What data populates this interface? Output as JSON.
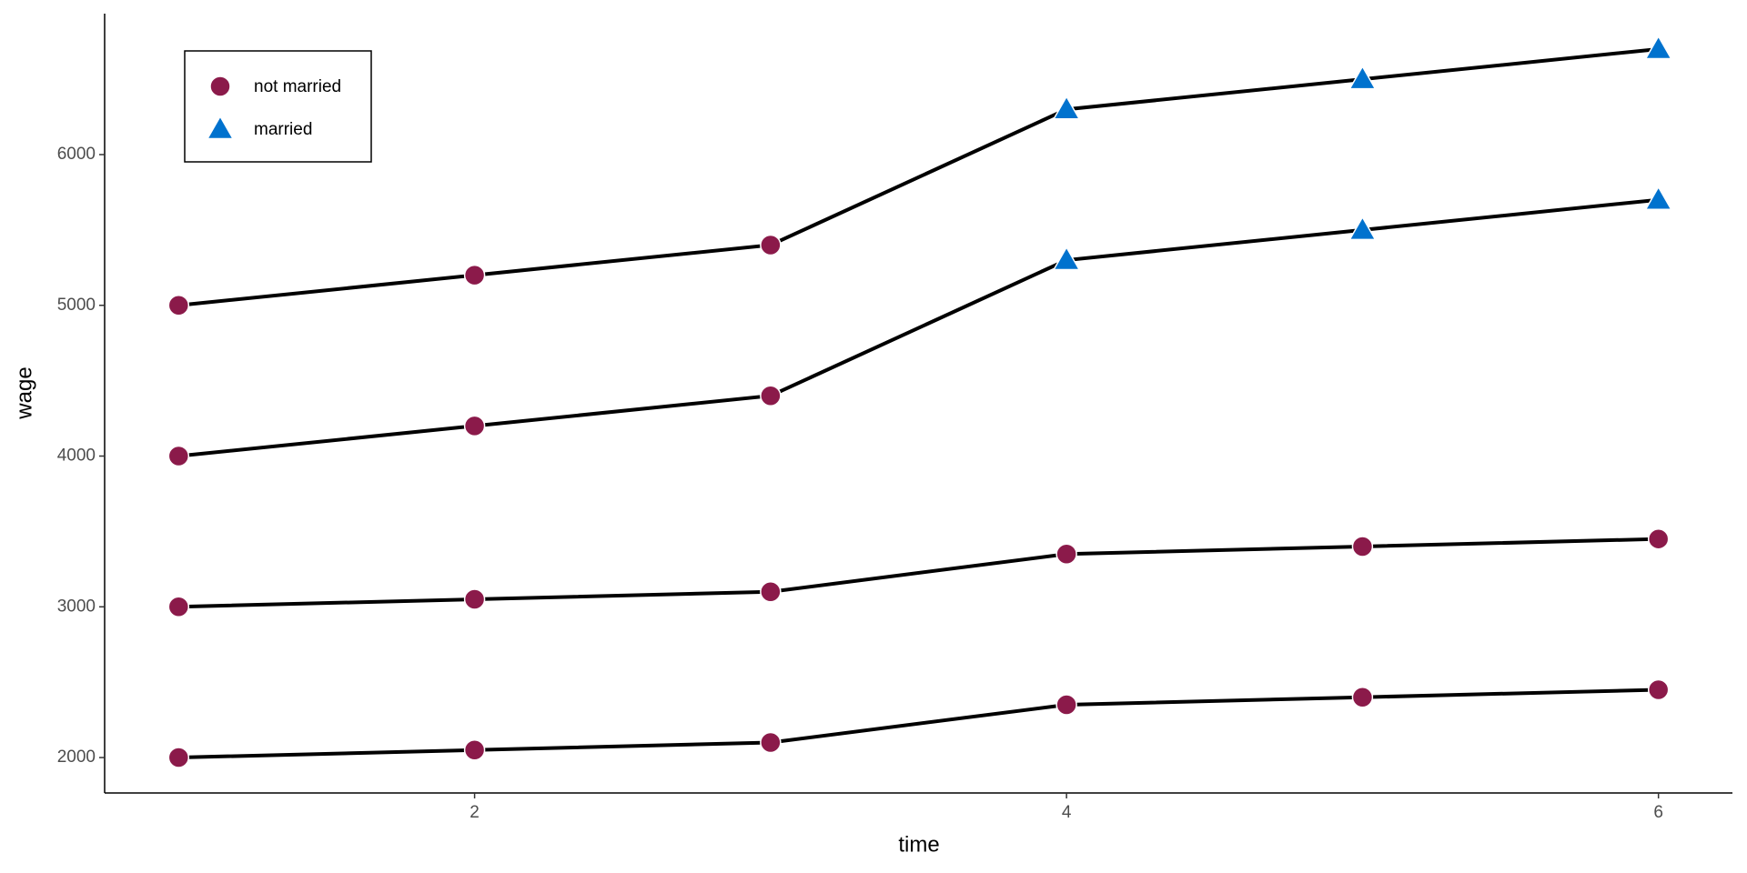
{
  "chart_data": {
    "type": "line",
    "x_label": "time",
    "y_label": "wage",
    "x": [
      1,
      2,
      3,
      4,
      5,
      6
    ],
    "xlim": [
      0.75,
      6.25
    ],
    "xticks": [
      2,
      4,
      6
    ],
    "ylim": [
      1765,
      6935
    ],
    "yticks": [
      2000,
      3000,
      4000,
      5000,
      6000
    ],
    "line_color": "#000000",
    "legend_position": "top-left",
    "legend": [
      {
        "name": "not married",
        "color": "#8B1A4A",
        "shape": "circle"
      },
      {
        "name": "married",
        "color": "#0072CE",
        "shape": "triangle"
      }
    ],
    "series": [
      {
        "values": [
          5000,
          5200,
          5400,
          6300,
          6500,
          6700
        ],
        "groups": [
          0,
          0,
          0,
          1,
          1,
          1
        ]
      },
      {
        "values": [
          4000,
          4200,
          4400,
          5300,
          5500,
          5700
        ],
        "groups": [
          0,
          0,
          0,
          1,
          1,
          1
        ]
      },
      {
        "values": [
          3000,
          3050,
          3100,
          3350,
          3400,
          3450
        ],
        "groups": [
          0,
          0,
          0,
          0,
          0,
          0
        ]
      },
      {
        "values": [
          2000,
          2050,
          2100,
          2350,
          2400,
          2450
        ],
        "groups": [
          0,
          0,
          0,
          0,
          0,
          0
        ]
      }
    ]
  }
}
